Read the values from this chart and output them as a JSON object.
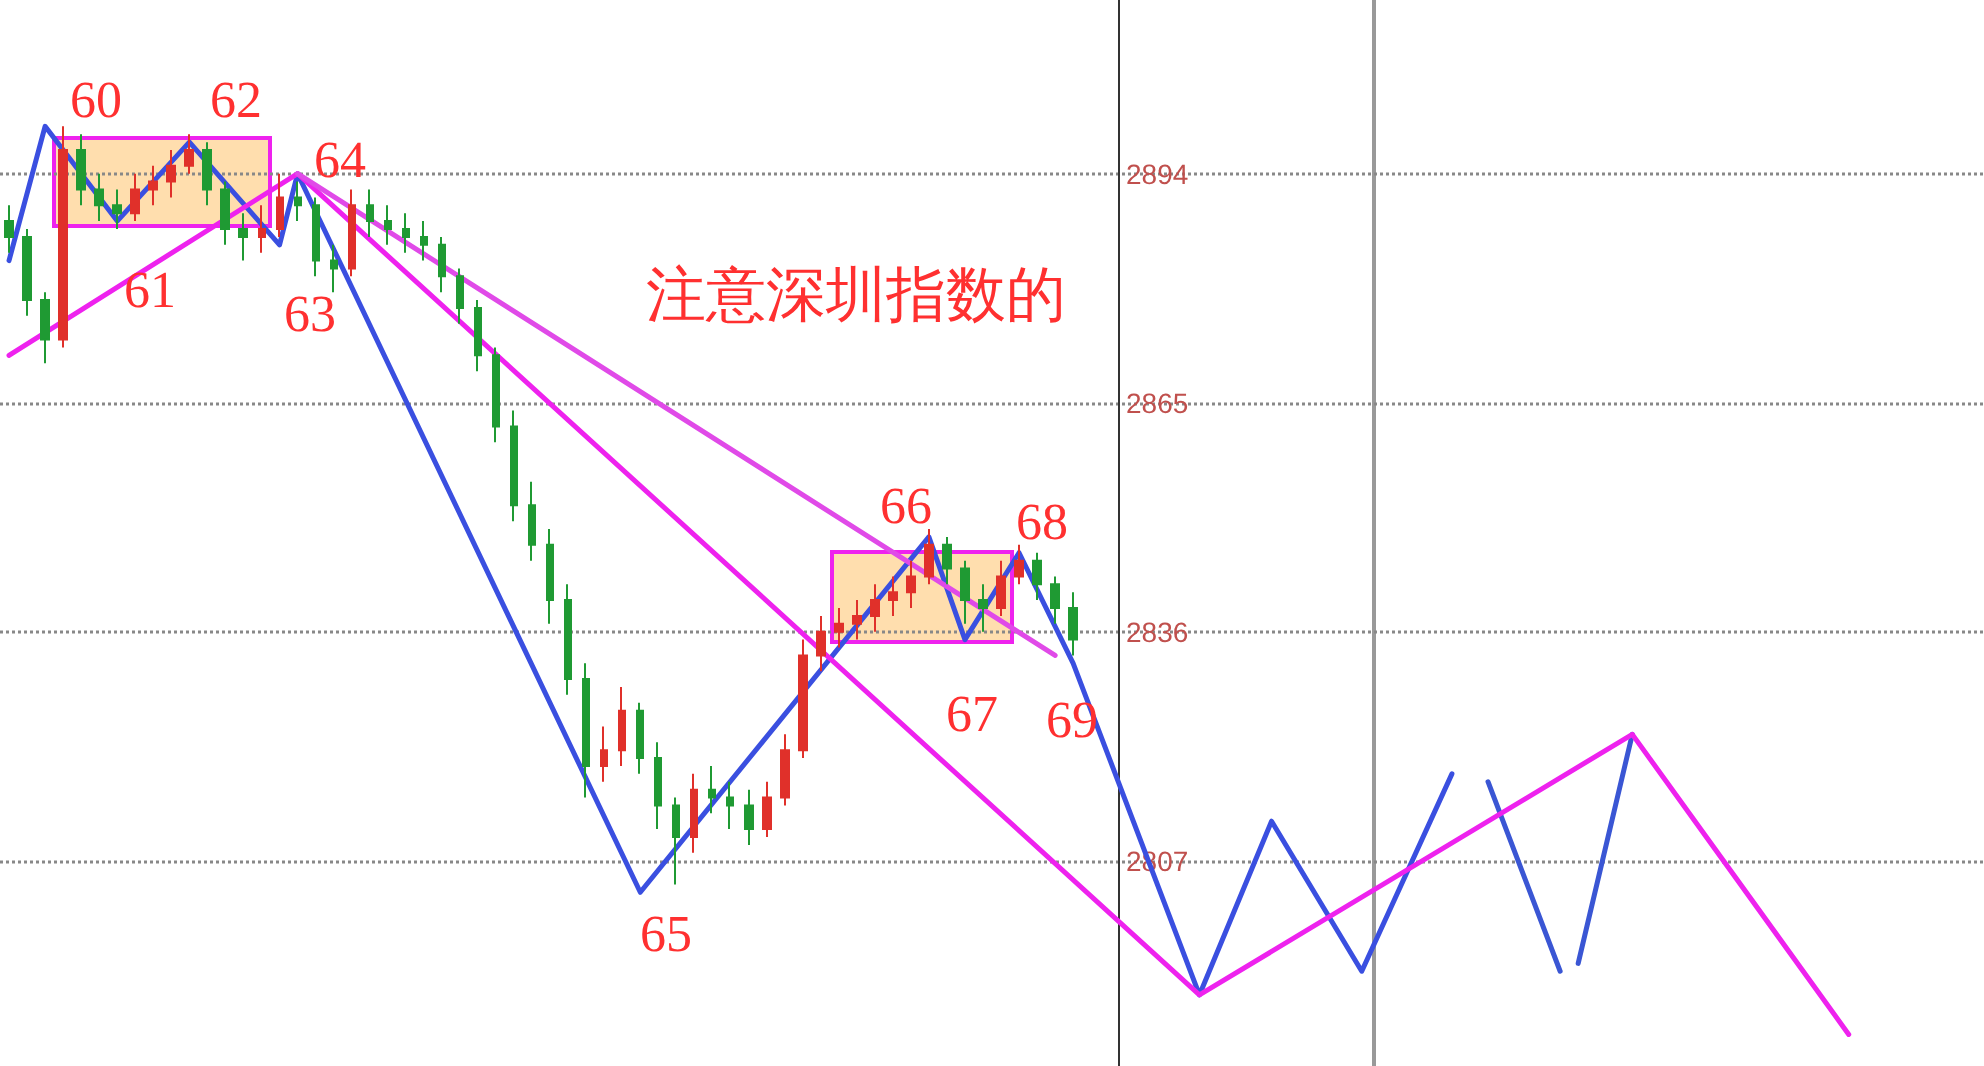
{
  "chart_data": {
    "type": "candlestick",
    "ylim": [
      2781,
      2916
    ],
    "yticks": [
      2807,
      2836,
      2865,
      2894
    ],
    "grid": "y",
    "tick_labels": "y",
    "categories": [
      null,
      null,
      null,
      null,
      null,
      null,
      null,
      null,
      null,
      null,
      null,
      null,
      null,
      null,
      null,
      null,
      null,
      null,
      null,
      null,
      null,
      null,
      null,
      null,
      null,
      null,
      null,
      null,
      null,
      null,
      null,
      null,
      null,
      null,
      null,
      null,
      null,
      null,
      null,
      null,
      null,
      null,
      null,
      null,
      null,
      null,
      null,
      null,
      null,
      null,
      null,
      null,
      null,
      null,
      null,
      null,
      null,
      null,
      null,
      null,
      null,
      null,
      null,
      null,
      null,
      null,
      null,
      null,
      null,
      null,
      null,
      null,
      null,
      null,
      null,
      null,
      null,
      null,
      null,
      null,
      null,
      null,
      null,
      null,
      null,
      null,
      null,
      null,
      null,
      null,
      null,
      null,
      null,
      null,
      null,
      null,
      null,
      null,
      null,
      null,
      null,
      null,
      null,
      null,
      null,
      null,
      null,
      null,
      null,
      null
    ],
    "series": [
      {
        "ohlc": [
          [
            2888,
            2890,
            2884,
            2886
          ],
          [
            2886,
            2887,
            2876,
            2878
          ],
          [
            2878,
            2879,
            2870,
            2873
          ],
          [
            2873,
            2900,
            2872,
            2897
          ],
          [
            2897,
            2899,
            2890,
            2892
          ],
          [
            2892,
            2894,
            2888,
            2890
          ],
          [
            2890,
            2892,
            2887,
            2889
          ],
          [
            2889,
            2894,
            2888,
            2892
          ],
          [
            2892,
            2895,
            2890,
            2893
          ],
          [
            2893,
            2897,
            2891,
            2895
          ],
          [
            2895,
            2899,
            2894,
            2897
          ],
          [
            2897,
            2898,
            2890,
            2892
          ],
          [
            2892,
            2893,
            2885,
            2887
          ],
          [
            2887,
            2889,
            2883,
            2886
          ],
          [
            2886,
            2890,
            2884,
            2887
          ],
          [
            2887,
            2894,
            2886,
            2891
          ],
          [
            2891,
            2893,
            2888,
            2890
          ],
          [
            2890,
            2891,
            2881,
            2883
          ],
          [
            2883,
            2885,
            2879,
            2882
          ],
          [
            2882,
            2892,
            2881,
            2890
          ],
          [
            2890,
            2892,
            2886,
            2888
          ],
          [
            2888,
            2890,
            2885,
            2887
          ],
          [
            2887,
            2889,
            2884,
            2886
          ],
          [
            2886,
            2888,
            2883,
            2885
          ],
          [
            2885,
            2886,
            2879,
            2881
          ],
          [
            2881,
            2882,
            2875,
            2877
          ],
          [
            2877,
            2878,
            2869,
            2871
          ],
          [
            2871,
            2872,
            2860,
            2862
          ],
          [
            2862,
            2864,
            2850,
            2852
          ],
          [
            2852,
            2855,
            2845,
            2847
          ],
          [
            2847,
            2849,
            2837,
            2840
          ],
          [
            2840,
            2842,
            2828,
            2830
          ],
          [
            2830,
            2832,
            2815,
            2819
          ],
          [
            2819,
            2824,
            2817,
            2821
          ],
          [
            2821,
            2829,
            2819,
            2826
          ],
          [
            2826,
            2827,
            2818,
            2820
          ],
          [
            2820,
            2822,
            2811,
            2814
          ],
          [
            2814,
            2815,
            2804,
            2810
          ],
          [
            2810,
            2818,
            2808,
            2816
          ],
          [
            2816,
            2819,
            2813,
            2815
          ],
          [
            2815,
            2817,
            2811,
            2814
          ],
          [
            2814,
            2816,
            2809,
            2811
          ],
          [
            2811,
            2817,
            2810,
            2815
          ],
          [
            2815,
            2823,
            2814,
            2821
          ],
          [
            2821,
            2835,
            2820,
            2833
          ],
          [
            2833,
            2838,
            2831,
            2836
          ],
          [
            2836,
            2839,
            2834,
            2837
          ],
          [
            2837,
            2840,
            2835,
            2838
          ],
          [
            2838,
            2842,
            2836,
            2840
          ],
          [
            2840,
            2843,
            2838,
            2841
          ],
          [
            2841,
            2845,
            2839,
            2843
          ],
          [
            2843,
            2849,
            2842,
            2847
          ],
          [
            2847,
            2848,
            2842,
            2844
          ],
          [
            2844,
            2845,
            2837,
            2840
          ],
          [
            2840,
            2842,
            2836,
            2839
          ],
          [
            2839,
            2845,
            2838,
            2843
          ],
          [
            2843,
            2847,
            2842,
            2845
          ],
          [
            2845,
            2846,
            2840,
            2842
          ],
          [
            2842,
            2843,
            2837,
            2839
          ],
          [
            2839,
            2841,
            2833,
            2835
          ],
          null,
          null,
          null,
          null,
          null,
          null,
          null,
          null,
          null,
          null,
          null,
          null,
          null,
          null,
          null,
          null,
          null,
          null,
          null,
          null,
          null,
          null,
          null,
          null,
          null,
          null,
          null,
          null,
          null,
          null,
          null,
          null,
          null,
          null,
          null,
          null,
          null,
          null,
          null,
          null,
          null,
          null,
          null,
          null,
          null,
          null,
          null,
          null,
          null,
          null
        ]
      },
      {
        "type": "line",
        "color": "#3a4fe0",
        "values": [
          2883,
          null,
          2900,
          null,
          null,
          null,
          2888,
          null,
          null,
          null,
          2898,
          null,
          null,
          null,
          null,
          2885,
          2894,
          null,
          null,
          null,
          null,
          null,
          null,
          null,
          null,
          null,
          null,
          null,
          null,
          null,
          null,
          null,
          null,
          null,
          null,
          2803,
          null,
          null,
          null,
          null,
          null,
          null,
          null,
          null,
          null,
          null,
          null,
          null,
          null,
          null,
          null,
          2848,
          null,
          2835,
          null,
          null,
          2846,
          null,
          null,
          2832,
          null,
          null,
          null,
          null,
          null,
          null,
          2790,
          null,
          null,
          null,
          2812,
          null,
          null,
          null,
          null,
          2793,
          null,
          null,
          null,
          null,
          2818,
          null,
          null,
          null,
          null,
          null,
          null,
          null,
          null,
          null,
          null,
          null,
          null,
          null,
          null,
          null,
          null,
          null,
          null,
          null,
          null,
          null,
          null,
          null,
          null,
          null,
          null,
          null,
          null,
          null
        ]
      },
      {
        "type": "line",
        "color": "#3a56d4",
        "values": [
          null,
          null,
          null,
          null,
          null,
          null,
          null,
          null,
          null,
          null,
          null,
          null,
          null,
          null,
          null,
          null,
          null,
          null,
          null,
          null,
          null,
          null,
          null,
          null,
          null,
          null,
          null,
          null,
          null,
          null,
          null,
          null,
          null,
          null,
          null,
          null,
          null,
          null,
          null,
          null,
          null,
          null,
          null,
          null,
          null,
          null,
          null,
          null,
          null,
          null,
          null,
          null,
          null,
          null,
          null,
          null,
          null,
          null,
          null,
          null,
          null,
          null,
          null,
          null,
          null,
          null,
          null,
          null,
          null,
          null,
          null,
          null,
          null,
          null,
          null,
          null,
          null,
          null,
          null,
          null,
          null,
          null,
          2817,
          null,
          null,
          null,
          2793,
          null,
          null,
          null,
          null,
          null,
          null,
          null,
          null,
          null,
          null,
          null,
          null,
          null,
          null,
          null,
          null,
          null,
          null,
          null,
          null,
          null,
          null,
          null
        ]
      },
      {
        "type": "line",
        "color": "#3a56d4",
        "values": [
          null,
          null,
          null,
          null,
          null,
          null,
          null,
          null,
          null,
          null,
          null,
          null,
          null,
          null,
          null,
          null,
          null,
          null,
          null,
          null,
          null,
          null,
          null,
          null,
          null,
          null,
          null,
          null,
          null,
          null,
          null,
          null,
          null,
          null,
          null,
          null,
          null,
          null,
          null,
          null,
          null,
          null,
          null,
          null,
          null,
          null,
          null,
          null,
          null,
          null,
          null,
          null,
          null,
          null,
          null,
          null,
          null,
          null,
          null,
          null,
          null,
          null,
          null,
          null,
          null,
          null,
          null,
          null,
          null,
          null,
          null,
          null,
          null,
          null,
          null,
          null,
          null,
          null,
          null,
          null,
          null,
          null,
          null,
          null,
          null,
          null,
          null,
          2794,
          null,
          null,
          2823,
          null,
          null,
          null,
          null,
          null,
          null,
          null,
          null,
          null,
          null,
          null,
          null,
          null,
          null,
          null,
          null,
          null,
          null,
          null
        ]
      },
      {
        "type": "line",
        "color": "#ee22ee",
        "values": [
          2871,
          null,
          null,
          null,
          null,
          null,
          null,
          null,
          null,
          null,
          null,
          null,
          null,
          null,
          null,
          null,
          2894,
          null,
          null,
          null,
          null,
          null,
          null,
          null,
          null,
          null,
          null,
          null,
          null,
          null,
          null,
          null,
          null,
          null,
          null,
          null,
          null,
          null,
          null,
          null,
          null,
          null,
          null,
          null,
          null,
          null,
          null,
          null,
          null,
          null,
          null,
          null,
          null,
          null,
          null,
          null,
          null,
          null,
          null,
          null,
          null,
          null,
          null,
          null,
          null,
          null,
          2790,
          null,
          null,
          null,
          null,
          null,
          null,
          null,
          null,
          null,
          null,
          null,
          null,
          null,
          null,
          null,
          null,
          null,
          null,
          null,
          null,
          null,
          null,
          null,
          2823,
          null,
          null,
          null,
          null,
          null,
          null,
          null,
          null,
          null,
          null,
          null,
          2785,
          null,
          null,
          null,
          null,
          null,
          null,
          null
        ]
      },
      {
        "type": "line",
        "color": "#e04ae8",
        "values": [
          null,
          null,
          null,
          null,
          null,
          null,
          null,
          null,
          null,
          null,
          null,
          null,
          null,
          null,
          null,
          null,
          2894,
          null,
          null,
          null,
          null,
          null,
          null,
          null,
          null,
          null,
          null,
          null,
          null,
          null,
          null,
          null,
          null,
          null,
          null,
          null,
          null,
          null,
          null,
          null,
          null,
          null,
          null,
          null,
          null,
          null,
          null,
          null,
          null,
          null,
          null,
          null,
          null,
          null,
          null,
          null,
          null,
          null,
          2833,
          null,
          null,
          null,
          null,
          null,
          null,
          null,
          null,
          null,
          null,
          null,
          null,
          null,
          null,
          null,
          null,
          null,
          null,
          null,
          null,
          null,
          null,
          null,
          null,
          null,
          null,
          null,
          null,
          null,
          null,
          null,
          null,
          null,
          null,
          null,
          null,
          null,
          null,
          null,
          null,
          null,
          null,
          null,
          null,
          null,
          null,
          null,
          null,
          null,
          null,
          null
        ]
      }
    ],
    "annotations": [
      "60",
      "61",
      "62",
      "63",
      "64",
      "65",
      "66",
      "67",
      "68",
      "69",
      "注意深圳指数的"
    ]
  }
}
